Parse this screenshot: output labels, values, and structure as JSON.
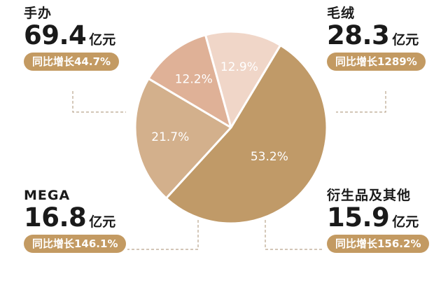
{
  "callouts": [
    {
      "category": "手办",
      "value": "69.4",
      "unit": "亿元",
      "growth": "同比增长44.7%"
    },
    {
      "category": "毛绒",
      "value": "28.3",
      "unit": "亿元",
      "growth": "同比增长1289%"
    },
    {
      "category": "MEGA",
      "value": "16.8",
      "unit": "亿元",
      "growth": "同比增长146.1%"
    },
    {
      "category": "衍生品及其他",
      "value": "15.9",
      "unit": "亿元",
      "growth": "同比增长156.2%"
    }
  ],
  "colors": {
    "badge": "#c39a62",
    "leader_line": "#b9a58c"
  },
  "chart_data": {
    "type": "pie",
    "title": "",
    "categories": [
      "手办",
      "毛绒",
      "衍生品及其他",
      "MEGA"
    ],
    "values": [
      53.2,
      21.7,
      12.2,
      12.9
    ],
    "labels": [
      "53.2%",
      "21.7%",
      "12.2%",
      "12.9%"
    ],
    "colors": [
      "#c09a68",
      "#d3b08c",
      "#dfb197",
      "#f0d6c8"
    ],
    "start_angle_deg": -59,
    "legend": "none"
  }
}
